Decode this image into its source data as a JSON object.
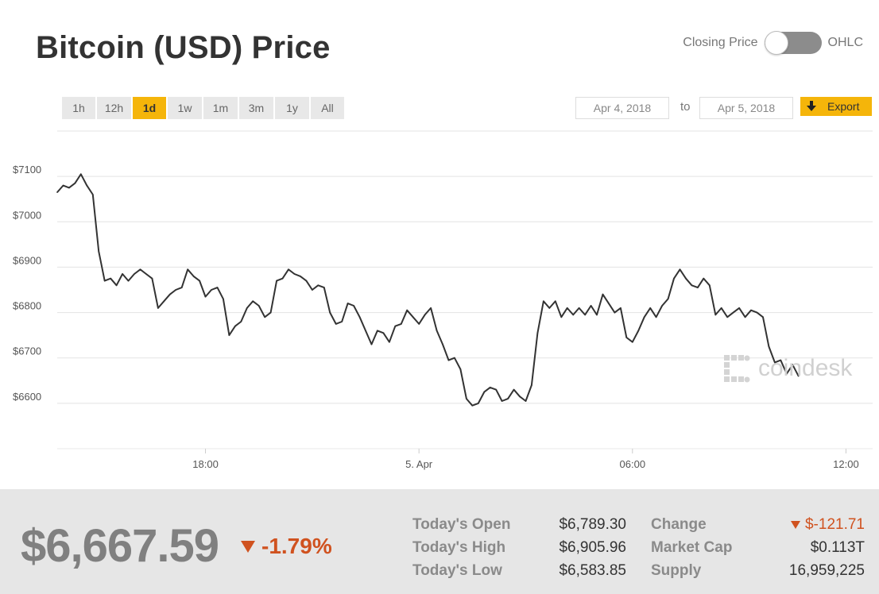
{
  "header": {
    "title": "Bitcoin (USD) Price"
  },
  "toggle": {
    "left_label": "Closing Price",
    "right_label": "OHLC"
  },
  "ranges": [
    {
      "label": "1h",
      "active": false
    },
    {
      "label": "12h",
      "active": false
    },
    {
      "label": "1d",
      "active": true
    },
    {
      "label": "1w",
      "active": false
    },
    {
      "label": "1m",
      "active": false
    },
    {
      "label": "3m",
      "active": false
    },
    {
      "label": "1y",
      "active": false
    },
    {
      "label": "All",
      "active": false
    }
  ],
  "date_range": {
    "from": "Apr 4, 2018",
    "to_label": "to",
    "to": "Apr 5, 2018"
  },
  "export": {
    "label": "Export",
    "icon": "download-arrow-icon"
  },
  "watermark": {
    "text": "coindesk"
  },
  "colors": {
    "accent": "#f5b50a",
    "negative": "#d0521f",
    "line": "#333333",
    "grid": "#e3e3e3",
    "footer_bg": "#e6e6e6"
  },
  "chart_data": {
    "type": "line",
    "title": "",
    "xlabel": "",
    "ylabel": "",
    "ylim": [
      6500,
      7200
    ],
    "xlim": [
      "Apr 4 13:50",
      "Apr 5 12:45"
    ],
    "yticks": [
      6600,
      6700,
      6800,
      6900,
      7000,
      7100
    ],
    "ytick_labels": [
      "$6600",
      "$6700",
      "$6800",
      "$6900",
      "$7000",
      "$7100"
    ],
    "xticks": [
      {
        "t": "Apr 4 18:00",
        "label": "18:00"
      },
      {
        "t": "Apr 5 00:00",
        "label": "5. Apr"
      },
      {
        "t": "Apr 5 06:00",
        "label": "06:00"
      },
      {
        "t": "Apr 5 12:00",
        "label": "12:00"
      }
    ],
    "grid": true,
    "series": [
      {
        "points": [
          [
            "Apr 4 13:50",
            7065
          ],
          [
            "Apr 4 14:00",
            7080
          ],
          [
            "Apr 4 14:10",
            7075
          ],
          [
            "Apr 4 14:20",
            7085
          ],
          [
            "Apr 4 14:30",
            7105
          ],
          [
            "Apr 4 14:40",
            7080
          ],
          [
            "Apr 4 14:50",
            7060
          ],
          [
            "Apr 4 15:00",
            6935
          ],
          [
            "Apr 4 15:10",
            6870
          ],
          [
            "Apr 4 15:20",
            6875
          ],
          [
            "Apr 4 15:30",
            6860
          ],
          [
            "Apr 4 15:40",
            6885
          ],
          [
            "Apr 4 15:50",
            6870
          ],
          [
            "Apr 4 16:00",
            6885
          ],
          [
            "Apr 4 16:10",
            6895
          ],
          [
            "Apr 4 16:20",
            6885
          ],
          [
            "Apr 4 16:30",
            6875
          ],
          [
            "Apr 4 16:40",
            6810
          ],
          [
            "Apr 4 16:50",
            6825
          ],
          [
            "Apr 4 17:00",
            6840
          ],
          [
            "Apr 4 17:10",
            6850
          ],
          [
            "Apr 4 17:20",
            6855
          ],
          [
            "Apr 4 17:30",
            6895
          ],
          [
            "Apr 4 17:40",
            6880
          ],
          [
            "Apr 4 17:50",
            6870
          ],
          [
            "Apr 4 18:00",
            6835
          ],
          [
            "Apr 4 18:10",
            6850
          ],
          [
            "Apr 4 18:20",
            6855
          ],
          [
            "Apr 4 18:30",
            6830
          ],
          [
            "Apr 4 18:40",
            6750
          ],
          [
            "Apr 4 18:50",
            6770
          ],
          [
            "Apr 4 19:00",
            6780
          ],
          [
            "Apr 4 19:10",
            6810
          ],
          [
            "Apr 4 19:20",
            6825
          ],
          [
            "Apr 4 19:30",
            6815
          ],
          [
            "Apr 4 19:40",
            6790
          ],
          [
            "Apr 4 19:50",
            6800
          ],
          [
            "Apr 4 20:00",
            6870
          ],
          [
            "Apr 4 20:10",
            6875
          ],
          [
            "Apr 4 20:20",
            6895
          ],
          [
            "Apr 4 20:30",
            6885
          ],
          [
            "Apr 4 20:40",
            6880
          ],
          [
            "Apr 4 20:50",
            6870
          ],
          [
            "Apr 4 21:00",
            6850
          ],
          [
            "Apr 4 21:10",
            6860
          ],
          [
            "Apr 4 21:20",
            6855
          ],
          [
            "Apr 4 21:30",
            6800
          ],
          [
            "Apr 4 21:40",
            6775
          ],
          [
            "Apr 4 21:50",
            6780
          ],
          [
            "Apr 4 22:00",
            6820
          ],
          [
            "Apr 4 22:10",
            6815
          ],
          [
            "Apr 4 22:20",
            6790
          ],
          [
            "Apr 4 22:30",
            6760
          ],
          [
            "Apr 4 22:40",
            6730
          ],
          [
            "Apr 4 22:50",
            6760
          ],
          [
            "Apr 4 23:00",
            6755
          ],
          [
            "Apr 4 23:10",
            6735
          ],
          [
            "Apr 4 23:20",
            6770
          ],
          [
            "Apr 4 23:30",
            6775
          ],
          [
            "Apr 4 23:40",
            6805
          ],
          [
            "Apr 4 23:50",
            6790
          ],
          [
            "Apr 5 00:00",
            6775
          ],
          [
            "Apr 5 00:10",
            6795
          ],
          [
            "Apr 5 00:20",
            6810
          ],
          [
            "Apr 5 00:30",
            6760
          ],
          [
            "Apr 5 00:40",
            6730
          ],
          [
            "Apr 5 00:50",
            6695
          ],
          [
            "Apr 5 01:00",
            6700
          ],
          [
            "Apr 5 01:10",
            6675
          ],
          [
            "Apr 5 01:20",
            6610
          ],
          [
            "Apr 5 01:30",
            6595
          ],
          [
            "Apr 5 01:40",
            6600
          ],
          [
            "Apr 5 01:50",
            6625
          ],
          [
            "Apr 5 02:00",
            6635
          ],
          [
            "Apr 5 02:10",
            6630
          ],
          [
            "Apr 5 02:20",
            6605
          ],
          [
            "Apr 5 02:30",
            6610
          ],
          [
            "Apr 5 02:40",
            6630
          ],
          [
            "Apr 5 02:50",
            6615
          ],
          [
            "Apr 5 03:00",
            6605
          ],
          [
            "Apr 5 03:10",
            6640
          ],
          [
            "Apr 5 03:20",
            6755
          ],
          [
            "Apr 5 03:30",
            6825
          ],
          [
            "Apr 5 03:40",
            6810
          ],
          [
            "Apr 5 03:50",
            6825
          ],
          [
            "Apr 5 04:00",
            6790
          ],
          [
            "Apr 5 04:10",
            6810
          ],
          [
            "Apr 5 04:20",
            6795
          ],
          [
            "Apr 5 04:30",
            6810
          ],
          [
            "Apr 5 04:40",
            6795
          ],
          [
            "Apr 5 04:50",
            6815
          ],
          [
            "Apr 5 05:00",
            6795
          ],
          [
            "Apr 5 05:10",
            6840
          ],
          [
            "Apr 5 05:20",
            6820
          ],
          [
            "Apr 5 05:30",
            6800
          ],
          [
            "Apr 5 05:40",
            6810
          ],
          [
            "Apr 5 05:50",
            6745
          ],
          [
            "Apr 5 06:00",
            6735
          ],
          [
            "Apr 5 06:10",
            6760
          ],
          [
            "Apr 5 06:20",
            6790
          ],
          [
            "Apr 5 06:30",
            6810
          ],
          [
            "Apr 5 06:40",
            6790
          ],
          [
            "Apr 5 06:50",
            6815
          ],
          [
            "Apr 5 07:00",
            6830
          ],
          [
            "Apr 5 07:10",
            6875
          ],
          [
            "Apr 5 07:20",
            6895
          ],
          [
            "Apr 5 07:30",
            6875
          ],
          [
            "Apr 5 07:40",
            6860
          ],
          [
            "Apr 5 07:50",
            6855
          ],
          [
            "Apr 5 08:00",
            6875
          ],
          [
            "Apr 5 08:10",
            6860
          ],
          [
            "Apr 5 08:20",
            6795
          ],
          [
            "Apr 5 08:30",
            6810
          ],
          [
            "Apr 5 08:40",
            6790
          ],
          [
            "Apr 5 08:50",
            6800
          ],
          [
            "Apr 5 09:00",
            6810
          ],
          [
            "Apr 5 09:10",
            6790
          ],
          [
            "Apr 5 09:20",
            6805
          ],
          [
            "Apr 5 09:30",
            6800
          ],
          [
            "Apr 5 09:40",
            6790
          ],
          [
            "Apr 5 09:50",
            6725
          ],
          [
            "Apr 5 10:00",
            6690
          ],
          [
            "Apr 5 10:10",
            6695
          ],
          [
            "Apr 5 10:20",
            6665
          ],
          [
            "Apr 5 10:30",
            6685
          ],
          [
            "Apr 5 10:40",
            6660
          ]
        ]
      }
    ]
  },
  "summary": {
    "price": "$6,667.59",
    "change_pct": "-1.79%",
    "stats": [
      {
        "label": "Today's Open",
        "value": "$6,789.30"
      },
      {
        "label": "Today's High",
        "value": "$6,905.96"
      },
      {
        "label": "Today's Low",
        "value": "$6,583.85"
      }
    ],
    "stats2": [
      {
        "label": "Change",
        "value": "$-121.71",
        "down": true
      },
      {
        "label": "Market Cap",
        "value": "$0.113T",
        "down": false
      },
      {
        "label": "Supply",
        "value": "16,959,225",
        "down": false
      }
    ]
  }
}
